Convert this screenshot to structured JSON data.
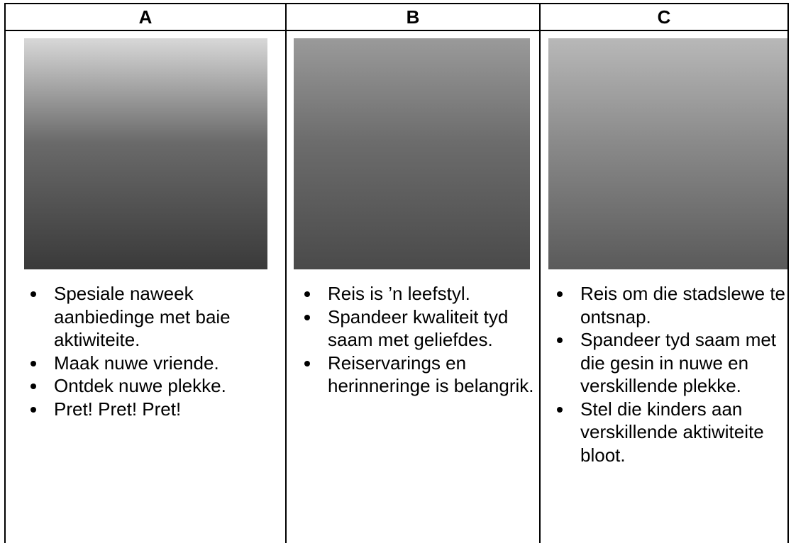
{
  "columns": [
    {
      "header": "A",
      "items": [
        "Spesiale naweek aanbiedinge met baie aktiwiteite.",
        "Maak nuwe vriende.",
        "Ontdek nuwe plekke.",
        "Pret! Pret! Pret!"
      ]
    },
    {
      "header": "B",
      "items": [
        "Reis is ’n leefstyl.",
        "Spandeer kwaliteit tyd saam met geliefdes.",
        "Reiservarings en herinneringe is belangrik."
      ]
    },
    {
      "header": "C",
      "items": [
        "Reis om die stadslewe te ontsnap.",
        "Spandeer tyd saam met die gesin in nuwe en verskillende plekke.",
        "Stel die kinders aan verskillende aktiwiteite bloot."
      ]
    }
  ]
}
